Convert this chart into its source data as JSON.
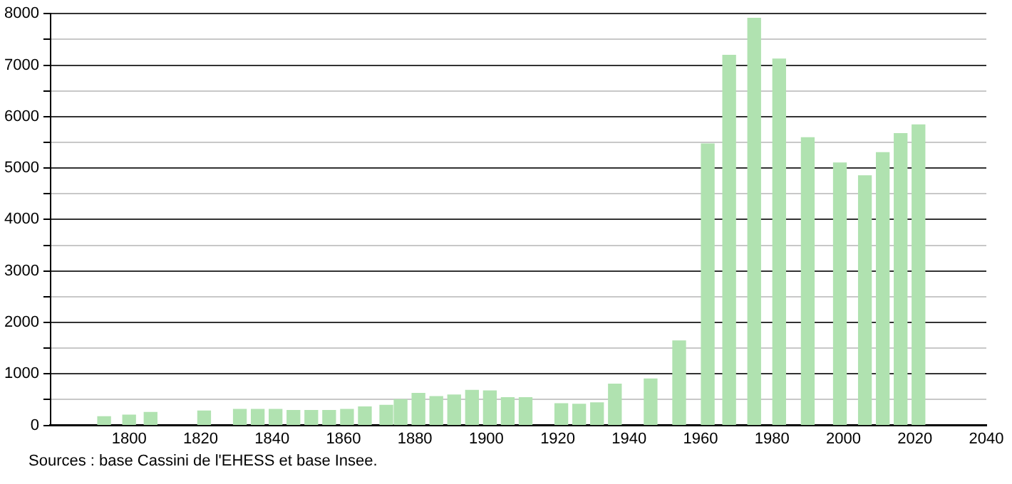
{
  "chart_data": {
    "type": "bar",
    "x": [
      1793,
      1800,
      1806,
      1821,
      1831,
      1836,
      1841,
      1846,
      1851,
      1856,
      1861,
      1866,
      1872,
      1876,
      1881,
      1886,
      1891,
      1896,
      1901,
      1906,
      1911,
      1921,
      1926,
      1931,
      1936,
      1946,
      1954,
      1962,
      1968,
      1975,
      1982,
      1990,
      1999,
      2006,
      2011,
      2016,
      2021
    ],
    "values": [
      170,
      200,
      250,
      280,
      310,
      310,
      310,
      290,
      290,
      290,
      310,
      360,
      390,
      500,
      620,
      560,
      590,
      680,
      670,
      540,
      540,
      420,
      410,
      440,
      800,
      900,
      1640,
      5470,
      7190,
      7910,
      7120,
      5590,
      5100,
      4850,
      5300,
      5670,
      5840
    ],
    "color": "#b0e2b0",
    "xlim": [
      1778,
      2040
    ],
    "xticks": [
      1800,
      1820,
      1840,
      1860,
      1880,
      1900,
      1920,
      1940,
      1960,
      1980,
      2000,
      2020,
      2040
    ],
    "ylim": [
      0,
      8000
    ],
    "yticks": [
      0,
      {
        "value": 500,
        "label": null
      },
      1000,
      {
        "value": 1500,
        "label": null
      },
      2000,
      {
        "value": 2500,
        "label": null
      },
      3000,
      {
        "value": 3500,
        "label": null
      },
      4000,
      {
        "value": 4500,
        "label": null
      },
      5000,
      {
        "value": 5500,
        "label": null
      },
      6000,
      {
        "value": 6500,
        "label": null
      },
      7000,
      {
        "value": 7500,
        "label": null
      },
      8000
    ],
    "grid": "y",
    "legend": false,
    "annotations": [
      "Sources : base Cassini de l'EHESS et base Insee."
    ]
  }
}
